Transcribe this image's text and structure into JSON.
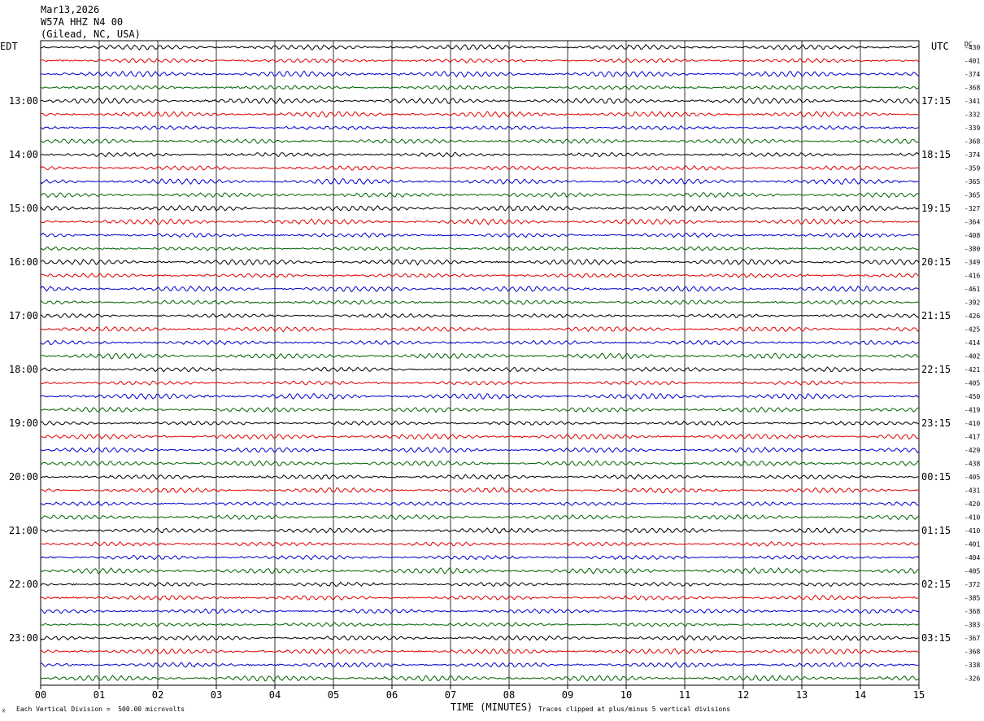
{
  "header": {
    "date": "Mar13,2026",
    "station": "W57A HHZ N4 00",
    "location": "(Gilead, NC, USA)"
  },
  "axis": {
    "left_zone": "EDT",
    "right_zone": "UTC",
    "dc_label": "DC",
    "xlabel": "TIME (MINUTES)"
  },
  "footer": {
    "scale_note": "Each Vertical Division =  500.00 microvolts",
    "clip_note": "Traces clipped at plus/minus 5 vertical divisions",
    "corner_mark": "☓"
  },
  "chart_data": {
    "type": "line",
    "title": "W57A HHZ N4 00",
    "xlabel": "TIME (MINUTES)",
    "ylabel": "",
    "xlim": [
      0,
      15
    ],
    "x_ticks": [
      "00",
      "01",
      "02",
      "03",
      "04",
      "05",
      "06",
      "07",
      "08",
      "09",
      "10",
      "11",
      "12",
      "13",
      "14",
      "15"
    ],
    "left_hour_labels": [
      "13:00",
      "14:00",
      "15:00",
      "16:00",
      "17:00",
      "18:00",
      "19:00",
      "20:00",
      "21:00",
      "22:00",
      "23:00"
    ],
    "right_hour_labels": [
      "17:15",
      "18:15",
      "19:15",
      "20:15",
      "21:15",
      "22:15",
      "23:15",
      "00:15",
      "01:15",
      "02:15",
      "03:15"
    ],
    "trace_colors": [
      "#000000",
      "#e00000",
      "#0000cc",
      "#006400"
    ],
    "dc_offsets": [
      -430,
      -401,
      -374,
      -368,
      -341,
      -332,
      -339,
      -368,
      -374,
      -359,
      -365,
      -365,
      -327,
      -364,
      -408,
      -380,
      -349,
      -416,
      -461,
      -392,
      -426,
      -425,
      -414,
      -402,
      -421,
      -405,
      -450,
      -419,
      -410,
      -417,
      -429,
      -438,
      -405,
      -431,
      -420,
      -410,
      -410,
      -401,
      -404,
      -405,
      -372,
      -385,
      -368,
      -383,
      -367,
      -368,
      -338,
      -326
    ],
    "trace_count": 48,
    "minutes_per_trace": 15,
    "grid": true
  }
}
